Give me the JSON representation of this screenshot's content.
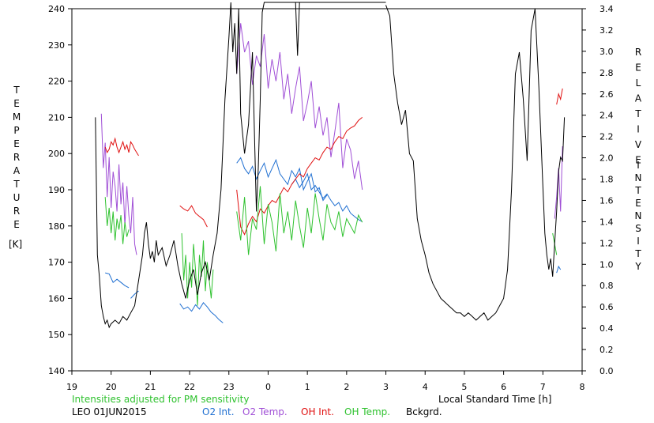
{
  "chart_data": {
    "type": "line",
    "left_axis": {
      "ylabel_letters": [
        "T",
        "E",
        "M",
        "P",
        "E",
        "R",
        "A",
        "T",
        "U",
        "R",
        "E"
      ],
      "unit": "[K]",
      "ylim": [
        140,
        240
      ],
      "ticks": [
        "140",
        "150",
        "160",
        "170",
        "180",
        "190",
        "200",
        "210",
        "220",
        "230",
        "240"
      ]
    },
    "right_axis": {
      "ylabel_word1": [
        "R",
        "E",
        "L",
        "A",
        "T",
        "I",
        "V",
        "E"
      ],
      "ylabel_word2": [
        "I",
        "N",
        "T",
        "E",
        "N",
        "S",
        "I",
        "T",
        "Y"
      ],
      "ylim": [
        0.0,
        3.4
      ],
      "ticks": [
        "0.0",
        "0.2",
        "0.4",
        "0.6",
        "0.8",
        "1.0",
        "1.2",
        "1.4",
        "1.6",
        "1.8",
        "2.0",
        "2.2",
        "2.4",
        "2.6",
        "2.8",
        "3.0",
        "3.2",
        "3.4"
      ]
    },
    "x_axis": {
      "xlabel": "Local Standard Time [h]",
      "xlim": [
        19,
        32
      ],
      "ticks": [
        "19",
        "20",
        "21",
        "22",
        "23",
        "0",
        "1",
        "2",
        "3",
        "4",
        "5",
        "6",
        "7",
        "8"
      ]
    },
    "note": "Intensities adjusted for PM sensitivity",
    "station_date": "LEO 01JUN2015",
    "series": [
      {
        "name": "O2 Int.",
        "color": "#1f6fd1",
        "axis": "right",
        "segments": [
          {
            "x": [
              19.85,
              19.95,
              20.05,
              20.15,
              20.25,
              20.35,
              20.45
            ],
            "y": [
              0.92,
              0.91,
              0.83,
              0.86,
              0.83,
              0.8,
              0.78
            ]
          },
          {
            "x": [
              20.5,
              20.6,
              20.7
            ],
            "y": [
              0.68,
              0.72,
              0.75
            ]
          },
          {
            "x": [
              21.75,
              21.85,
              21.95,
              22.05,
              22.15,
              22.25,
              22.35,
              22.45,
              22.55,
              22.65,
              22.75,
              22.85
            ],
            "y": [
              0.63,
              0.58,
              0.6,
              0.56,
              0.62,
              0.58,
              0.64,
              0.6,
              0.55,
              0.52,
              0.48,
              0.45
            ]
          },
          {
            "x": [
              23.2,
              23.3,
              23.4,
              23.5,
              23.6,
              23.7,
              23.8,
              23.9,
              24.0,
              24.1,
              24.2,
              24.3,
              24.4,
              24.5,
              24.6,
              24.7,
              24.8,
              24.9,
              25.0,
              25.1,
              25.2,
              25.3,
              25.4,
              25.5
            ],
            "y": [
              1.95,
              2.0,
              1.9,
              1.85,
              1.92,
              1.8,
              1.88,
              1.95,
              1.82,
              1.9,
              1.98,
              1.85,
              1.8,
              1.75,
              1.88,
              1.82,
              1.9,
              1.7,
              1.78,
              1.85,
              1.68,
              1.72,
              1.6,
              1.65
            ]
          },
          {
            "x": [
              24.6,
              24.7,
              24.8,
              24.9,
              25.0,
              25.1,
              25.2,
              25.3,
              25.4,
              25.5,
              25.6,
              25.7,
              25.8,
              25.9,
              26.0,
              26.1,
              26.2,
              26.3,
              26.4
            ],
            "y": [
              1.75,
              1.8,
              1.72,
              1.78,
              1.85,
              1.7,
              1.74,
              1.68,
              1.62,
              1.66,
              1.6,
              1.55,
              1.58,
              1.5,
              1.55,
              1.48,
              1.45,
              1.42,
              1.4
            ]
          },
          {
            "x": [
              31.35,
              31.4,
              31.45
            ],
            "y": [
              0.92,
              0.98,
              0.95
            ]
          }
        ]
      },
      {
        "name": "O2 Temp.",
        "color": "#a04fd6",
        "axis": "left",
        "segments": [
          {
            "x": [
              19.75,
              19.8,
              19.85,
              19.9,
              19.95,
              20.0,
              20.05,
              20.1,
              20.15,
              20.2,
              20.25,
              20.3,
              20.35,
              20.4,
              20.45,
              20.5,
              20.55,
              20.6,
              20.65
            ],
            "y": [
              211,
              196,
              203,
              188,
              199,
              185,
              195,
              191,
              184,
              197,
              186,
              192,
              180,
              191,
              183,
              178,
              188,
              175,
              172
            ]
          },
          {
            "x": [
              23.2,
              23.3,
              23.4,
              23.5,
              23.6,
              23.7,
              23.8,
              23.9,
              24.0,
              24.1,
              24.2,
              24.3,
              24.4,
              24.5,
              24.6,
              24.7,
              24.8,
              24.9,
              25.0,
              25.1,
              25.2,
              25.3,
              25.4,
              25.5,
              25.6,
              25.7,
              25.8,
              25.9,
              26.0,
              26.1,
              26.2,
              26.3,
              26.4
            ],
            "y": [
              222,
              236,
              228,
              231,
              219,
              227,
              224,
              233,
              218,
              226,
              220,
              228,
              215,
              222,
              211,
              218,
              224,
              209,
              214,
              220,
              207,
              213,
              205,
              210,
              199,
              206,
              214,
              196,
              204,
              201,
              193,
              198,
              190
            ]
          },
          {
            "x": [
              31.3,
              31.35,
              31.4,
              31.45,
              31.5
            ],
            "y": [
              182,
              188,
              196,
              184,
              202
            ]
          }
        ]
      },
      {
        "name": "OH Int.",
        "color": "#e01010",
        "axis": "right",
        "segments": [
          {
            "x": [
              19.85,
              19.9,
              19.95,
              20.0,
              20.05,
              20.1,
              20.15,
              20.2,
              20.25,
              20.3,
              20.35,
              20.4,
              20.45,
              20.5,
              20.55,
              20.6,
              20.65,
              20.7
            ],
            "y": [
              2.1,
              2.05,
              2.08,
              2.15,
              2.12,
              2.18,
              2.1,
              2.05,
              2.1,
              2.15,
              2.08,
              2.12,
              2.05,
              2.15,
              2.12,
              2.08,
              2.05,
              2.02
            ]
          },
          {
            "x": [
              21.75,
              21.85,
              21.95,
              22.05,
              22.15,
              22.25,
              22.35,
              22.45
            ],
            "y": [
              1.55,
              1.52,
              1.5,
              1.55,
              1.48,
              1.45,
              1.42,
              1.35
            ]
          },
          {
            "x": [
              23.2,
              23.3,
              23.4,
              23.5,
              23.6,
              23.7,
              23.8,
              23.9,
              24.0,
              24.1,
              24.2,
              24.3,
              24.4,
              24.5,
              24.6,
              24.7,
              24.8,
              24.9,
              25.0,
              25.1,
              25.2,
              25.3,
              25.4,
              25.5,
              25.6,
              25.7,
              25.8,
              25.9,
              26.0,
              26.1,
              26.2,
              26.3,
              26.4
            ],
            "y": [
              1.7,
              1.35,
              1.28,
              1.38,
              1.45,
              1.4,
              1.52,
              1.48,
              1.55,
              1.6,
              1.58,
              1.65,
              1.72,
              1.68,
              1.75,
              1.8,
              1.85,
              1.82,
              1.9,
              1.95,
              2.0,
              1.98,
              2.05,
              2.1,
              2.08,
              2.15,
              2.2,
              2.18,
              2.25,
              2.28,
              2.3,
              2.35,
              2.38
            ]
          },
          {
            "x": [
              31.35,
              31.4,
              31.45,
              31.5
            ],
            "y": [
              2.5,
              2.6,
              2.55,
              2.65
            ]
          }
        ]
      },
      {
        "name": "OH Temp.",
        "color": "#2fc22f",
        "axis": "left",
        "segments": [
          {
            "x": [
              19.85,
              19.9,
              19.95,
              20.0,
              20.05,
              20.1,
              20.15,
              20.2,
              20.25,
              20.3,
              20.35,
              20.4,
              20.45
            ],
            "y": [
              188,
              180,
              185,
              178,
              184,
              176,
              182,
              179,
              183,
              175,
              181,
              177,
              179
            ]
          },
          {
            "x": [
              21.8,
              21.85,
              21.9,
              21.95,
              22.0,
              22.05,
              22.1,
              22.15,
              22.2,
              22.25,
              22.3,
              22.35,
              22.4,
              22.45,
              22.5,
              22.55,
              22.6
            ],
            "y": [
              178,
              165,
              172,
              160,
              170,
              163,
              175,
              168,
              158,
              172,
              166,
              176,
              162,
              170,
              165,
              160,
              168
            ]
          },
          {
            "x": [
              23.2,
              23.3,
              23.4,
              23.5,
              23.6,
              23.7,
              23.8,
              23.9,
              24.0,
              24.1,
              24.2,
              24.3,
              24.4,
              24.5,
              24.6,
              24.7,
              24.8,
              24.9,
              25.0,
              25.1,
              25.2,
              25.3,
              25.4,
              25.5,
              25.6,
              25.7,
              25.8,
              25.9,
              26.0,
              26.1,
              26.2,
              26.3,
              26.4
            ],
            "y": [
              184,
              176,
              188,
              172,
              182,
              179,
              191,
              175,
              186,
              181,
              173,
              189,
              178,
              184,
              176,
              187,
              180,
              174,
              185,
              178,
              189,
              182,
              176,
              186,
              181,
              179,
              184,
              177,
              182,
              180,
              178,
              183,
              181
            ]
          },
          {
            "x": [
              31.25,
              31.3,
              31.35
            ],
            "y": [
              178,
              175,
              172
            ]
          }
        ]
      },
      {
        "name": "Bckgrd.",
        "color": "#000000",
        "axis": "left",
        "segments": [
          {
            "x": [
              19.6,
              19.65,
              19.7,
              19.75,
              19.8,
              19.85,
              19.9,
              19.95,
              20.0,
              20.1,
              20.2,
              20.3,
              20.4,
              20.5,
              20.6,
              20.7,
              20.8,
              20.85,
              20.9,
              20.95,
              21.0,
              21.05,
              21.1,
              21.15,
              21.2,
              21.3,
              21.4,
              21.5,
              21.6,
              21.7,
              21.8,
              21.9,
              22.0,
              22.1,
              22.2,
              22.3,
              22.4,
              22.5,
              22.6,
              22.7,
              22.8,
              22.9,
              23.0,
              23.05,
              23.1,
              23.15,
              23.2,
              23.25,
              23.3,
              23.4,
              23.5,
              23.6,
              23.7,
              23.75,
              23.8,
              23.85,
              23.9,
              24.0,
              24.2,
              24.4,
              24.6,
              24.65,
              24.7,
              24.8,
              25.0,
              25.2,
              25.4,
              25.6,
              25.8,
              26.0,
              26.2,
              26.4,
              26.6,
              26.7,
              26.8,
              26.9,
              27.0
            ],
            "y": [
              210,
              172,
              166,
              158,
              155,
              153,
              154,
              152,
              153,
              154,
              153,
              155,
              154,
              156,
              158,
              165,
              172,
              178,
              181,
              175,
              171,
              173,
              170,
              176,
              172,
              174,
              169,
              172,
              176,
              169,
              164,
              160,
              165,
              168,
              161,
              167,
              170,
              165,
              172,
              178,
              190,
              215,
              232,
              243,
              228,
              236,
              222,
              240,
              211,
              200,
              208,
              228,
              184,
              196,
              215,
              239,
              243,
              243,
              243,
              243,
              243,
              243,
              243,
              243,
              243,
              243,
              243,
              243,
              243,
              243,
              243,
              243,
              243,
              243,
              243,
              243,
              243
            ]
          },
          {
            "x": [
              24.7,
              24.75,
              24.8
            ],
            "y": [
              243,
              227,
              243
            ]
          },
          {
            "x": [
              27.0,
              27.1,
              27.2,
              27.3,
              27.4,
              27.5,
              27.6,
              27.7,
              27.8,
              27.9,
              28.0,
              28.1,
              28.2,
              28.3,
              28.4,
              28.5,
              28.6,
              28.7,
              28.8,
              28.9,
              29.0,
              29.1,
              29.2,
              29.3,
              29.4,
              29.5,
              29.6,
              29.7,
              29.8,
              29.9,
              30.0,
              30.1,
              30.2,
              30.3,
              30.4,
              30.5,
              30.6,
              30.7,
              30.8,
              30.9,
              31.0,
              31.05,
              31.1,
              31.15,
              31.2,
              31.25,
              31.3,
              31.35,
              31.4,
              31.45,
              31.5,
              31.55
            ],
            "y": [
              241,
              238,
              222,
              214,
              208,
              212,
              200,
              198,
              182,
              176,
              172,
              167,
              164,
              162,
              160,
              159,
              158,
              157,
              156,
              156,
              155,
              156,
              155,
              154,
              155,
              156,
              154,
              155,
              156,
              158,
              160,
              168,
              190,
              222,
              228,
              215,
              198,
              234,
              240,
              218,
              191,
              178,
              172,
              168,
              171,
              166,
              175,
              184,
              195,
              199,
              198,
              210
            ]
          }
        ]
      }
    ]
  }
}
